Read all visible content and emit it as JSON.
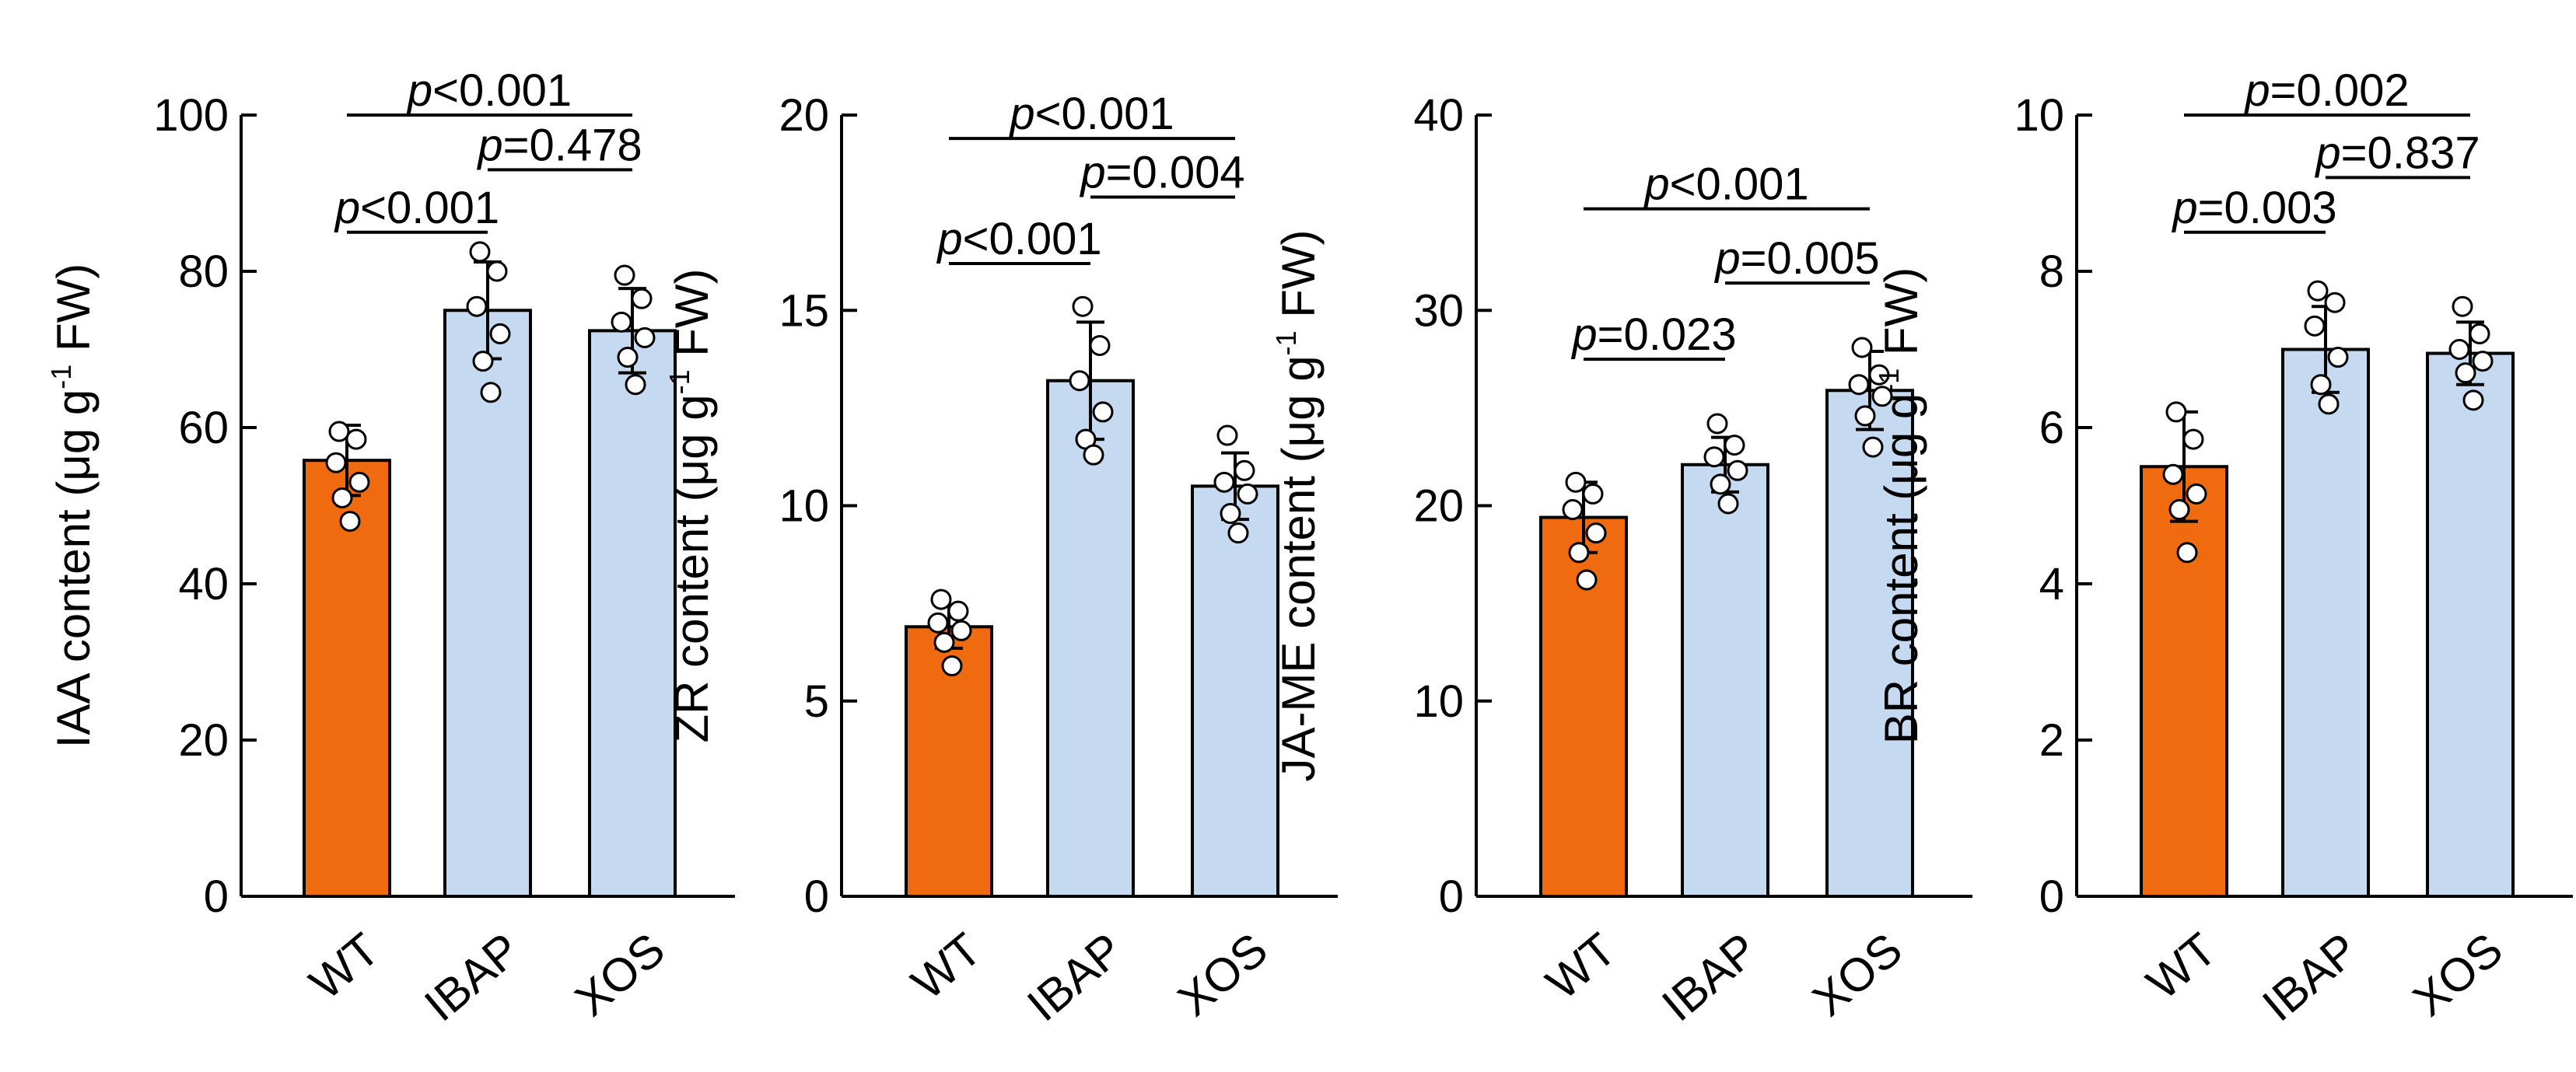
{
  "colors": {
    "wt": "#F06A0F",
    "treated": "#C5D9F1",
    "stroke": "#000000",
    "point_fill": "#FFFFFF"
  },
  "chart_data": [
    {
      "type": "bar",
      "ylabel_main": "IAA content (μg g",
      "ylabel_sup": "-1",
      "ylabel_tail": " FW)",
      "ylim": [
        0,
        100
      ],
      "yticks": [
        "0",
        "20",
        "40",
        "60",
        "80",
        "100"
      ],
      "ytick_values": [
        0,
        20,
        40,
        60,
        80,
        100
      ],
      "categories": [
        "WT",
        "IBAP",
        "XOS"
      ],
      "values": [
        55.8,
        75.0,
        72.4
      ],
      "errors": [
        4.5,
        6.2,
        5.4
      ],
      "points": [
        [
          59.5,
          58.5,
          55.5,
          53.0,
          51.0,
          48.0
        ],
        [
          82.5,
          80.0,
          75.5,
          72.0,
          68.5,
          64.5
        ],
        [
          79.5,
          76.5,
          73.5,
          71.5,
          69.0,
          65.5
        ]
      ],
      "comparisons": [
        {
          "italic": "p",
          "text": "<0.001",
          "from": 0,
          "to": 1,
          "y": 85.0
        },
        {
          "italic": "p",
          "text": "=0.478",
          "from": 1,
          "to": 2,
          "y": 93.0
        },
        {
          "italic": "p",
          "text": "<0.001",
          "from": 0,
          "to": 2,
          "y": 100.0
        }
      ]
    },
    {
      "type": "bar",
      "ylabel_main": "ZR content (μg g",
      "ylabel_sup": "-1",
      "ylabel_tail": " FW)",
      "ylim": [
        0,
        20
      ],
      "yticks": [
        "0",
        "5",
        "10",
        "15",
        "20"
      ],
      "ytick_values": [
        0,
        5,
        10,
        15,
        20
      ],
      "categories": [
        "WT",
        "IBAP",
        "XOS"
      ],
      "values": [
        6.9,
        13.2,
        10.5
      ],
      "errors": [
        0.55,
        1.5,
        0.85
      ],
      "points": [
        [
          7.6,
          7.3,
          7.0,
          6.8,
          6.5,
          5.9
        ],
        [
          15.1,
          14.1,
          13.2,
          12.4,
          11.7,
          11.3
        ],
        [
          11.8,
          10.9,
          10.6,
          10.3,
          9.8,
          9.3
        ]
      ],
      "comparisons": [
        {
          "italic": "p",
          "text": "<0.001",
          "from": 0,
          "to": 1,
          "y": 16.2
        },
        {
          "italic": "p",
          "text": "=0.004",
          "from": 1,
          "to": 2,
          "y": 17.9
        },
        {
          "italic": "p",
          "text": "<0.001",
          "from": 0,
          "to": 2,
          "y": 19.4
        }
      ]
    },
    {
      "type": "bar",
      "ylabel_main": "JA-ME content (μg g",
      "ylabel_sup": "-1",
      "ylabel_tail": " FW)",
      "ylim": [
        0,
        40
      ],
      "yticks": [
        "0",
        "10",
        "20",
        "30",
        "40"
      ],
      "ytick_values": [
        0,
        10,
        20,
        30,
        40
      ],
      "categories": [
        "WT",
        "IBAP",
        "XOS"
      ],
      "values": [
        19.4,
        22.1,
        25.9
      ],
      "errors": [
        1.8,
        1.4,
        2.0
      ],
      "points": [
        [
          21.2,
          20.6,
          19.8,
          18.6,
          17.6,
          16.2
        ],
        [
          24.2,
          23.1,
          22.5,
          21.8,
          21.1,
          20.1
        ],
        [
          28.1,
          26.7,
          26.2,
          25.6,
          24.6,
          23.0
        ]
      ],
      "comparisons": [
        {
          "italic": "p",
          "text": "=0.023",
          "from": 0,
          "to": 1,
          "y": 27.5
        },
        {
          "italic": "p",
          "text": "=0.005",
          "from": 1,
          "to": 2,
          "y": 31.4
        },
        {
          "italic": "p",
          "text": "<0.001",
          "from": 0,
          "to": 2,
          "y": 35.2
        }
      ]
    },
    {
      "type": "bar",
      "ylabel_main": "BR content (μg g",
      "ylabel_sup": "-1",
      "ylabel_tail": " FW)",
      "ylim": [
        0,
        10
      ],
      "yticks": [
        "0",
        "2",
        "4",
        "6",
        "8",
        "10"
      ],
      "ytick_values": [
        0,
        2,
        4,
        6,
        8,
        10
      ],
      "categories": [
        "WT",
        "IBAP",
        "XOS"
      ],
      "values": [
        5.5,
        7.0,
        6.95
      ],
      "errors": [
        0.7,
        0.55,
        0.4
      ],
      "points": [
        [
          6.2,
          5.85,
          5.4,
          5.15,
          4.95,
          4.4
        ],
        [
          7.75,
          7.6,
          7.3,
          6.9,
          6.55,
          6.3
        ],
        [
          7.55,
          7.2,
          7.0,
          6.85,
          6.7,
          6.35
        ]
      ],
      "comparisons": [
        {
          "italic": "p",
          "text": "=0.003",
          "from": 0,
          "to": 1,
          "y": 8.5
        },
        {
          "italic": "p",
          "text": "=0.837",
          "from": 1,
          "to": 2,
          "y": 9.2
        },
        {
          "italic": "p",
          "text": "=0.002",
          "from": 0,
          "to": 2,
          "y": 10.0
        }
      ]
    }
  ]
}
